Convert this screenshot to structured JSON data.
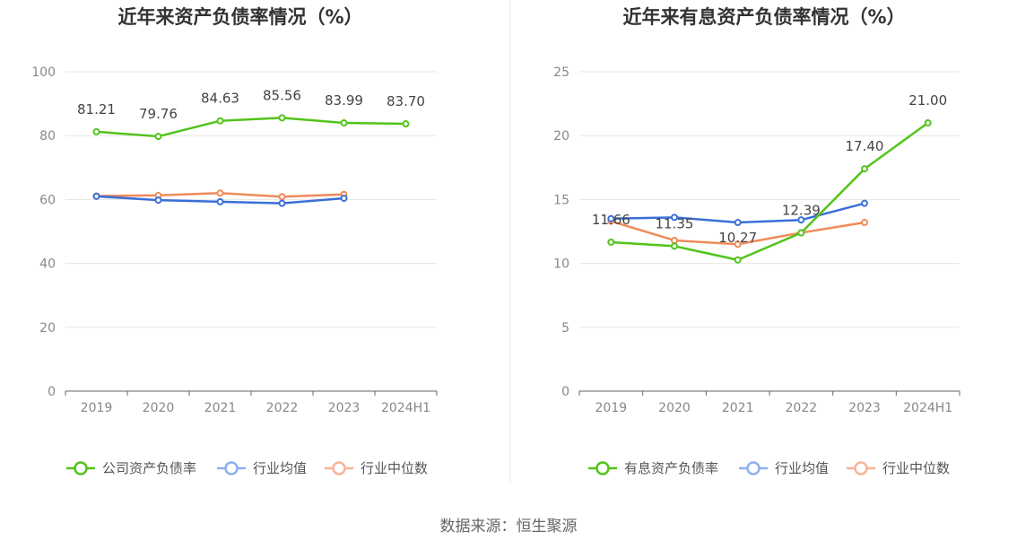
{
  "chart_data": [
    {
      "type": "line",
      "title": "近年来资产负债率情况（%）",
      "categories": [
        "2019",
        "2020",
        "2021",
        "2022",
        "2023",
        "2024H1"
      ],
      "ylim": [
        0,
        100
      ],
      "yticks": [
        0,
        20,
        40,
        60,
        80,
        100
      ],
      "grid": true,
      "legend_position": "bottom",
      "series": [
        {
          "name": "公司资产负债率",
          "color": "#52c41a",
          "values": [
            81.21,
            79.76,
            84.63,
            85.56,
            83.99,
            83.7
          ],
          "labels": [
            "81.21",
            "79.76",
            "84.63",
            "85.56",
            "83.99",
            "83.70"
          ],
          "show_labels": true
        },
        {
          "name": "行业均值",
          "color": "#3a6fd8",
          "values": [
            61.0,
            59.8,
            59.3,
            58.8,
            60.4,
            null
          ],
          "show_labels": false
        },
        {
          "name": "行业中位数",
          "color": "#f08a5a",
          "values": [
            61.1,
            61.3,
            62.0,
            60.9,
            61.6,
            null
          ],
          "show_labels": false
        }
      ]
    },
    {
      "type": "line",
      "title": "近年来有息资产负债率情况（%）",
      "categories": [
        "2019",
        "2020",
        "2021",
        "2022",
        "2023",
        "2024H1"
      ],
      "ylim": [
        0,
        25
      ],
      "yticks": [
        0,
        5,
        10,
        15,
        20,
        25
      ],
      "grid": true,
      "legend_position": "bottom",
      "series": [
        {
          "name": "有息资产负债率",
          "color": "#52c41a",
          "values": [
            11.66,
            11.35,
            10.27,
            12.39,
            17.4,
            21.0
          ],
          "labels": [
            "11.66",
            "11.35",
            "10.27",
            "12.39",
            "17.40",
            "21.00"
          ],
          "show_labels": true
        },
        {
          "name": "行业均值",
          "color": "#3a6fd8",
          "values": [
            13.5,
            13.6,
            13.2,
            13.4,
            14.7,
            null
          ],
          "show_labels": false
        },
        {
          "name": "行业中位数",
          "color": "#f08a5a",
          "values": [
            13.3,
            11.8,
            11.5,
            12.4,
            13.2,
            null
          ],
          "show_labels": false
        }
      ]
    }
  ],
  "footer": {
    "source": "数据来源：恒生聚源"
  }
}
